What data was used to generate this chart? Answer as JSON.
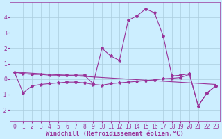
{
  "background_color": "#cceeff",
  "grid_color": "#aaccdd",
  "line_color": "#993399",
  "marker": "*",
  "marker_size": 3,
  "line_width": 0.8,
  "xlim": [
    -0.5,
    23.5
  ],
  "ylim": [
    -2.7,
    5.0
  ],
  "yticks": [
    -2,
    -1,
    0,
    1,
    2,
    3,
    4
  ],
  "xticks": [
    0,
    1,
    2,
    3,
    4,
    5,
    6,
    7,
    8,
    9,
    10,
    11,
    12,
    13,
    14,
    15,
    16,
    17,
    18,
    19,
    20,
    21,
    22,
    23
  ],
  "xlabel": "Windchill (Refroidissement éolien,°C)",
  "xlabel_fontsize": 6.5,
  "tick_fontsize": 5.5,
  "series1_x": [
    0,
    1,
    2,
    3,
    4,
    5,
    6,
    7,
    8,
    9,
    10,
    11,
    12,
    13,
    14,
    15,
    16,
    17,
    18,
    19,
    20,
    21,
    22,
    23
  ],
  "series1_y": [
    0.45,
    0.35,
    0.3,
    0.3,
    0.25,
    0.25,
    0.25,
    0.25,
    0.25,
    -0.3,
    2.0,
    1.5,
    1.2,
    3.8,
    4.1,
    4.55,
    4.3,
    2.8,
    0.2,
    0.25,
    0.35,
    -1.75,
    -0.9,
    -0.45
  ],
  "series2_x": [
    0,
    1,
    2,
    3,
    4,
    5,
    6,
    7,
    8,
    9,
    10,
    11,
    12,
    13,
    14,
    15,
    16,
    17,
    18,
    19,
    20,
    21,
    22,
    23
  ],
  "series2_y": [
    0.45,
    -0.9,
    -0.45,
    -0.35,
    -0.3,
    -0.25,
    -0.2,
    -0.2,
    -0.25,
    -0.35,
    -0.4,
    -0.3,
    -0.25,
    -0.2,
    -0.15,
    -0.1,
    -0.05,
    0.02,
    0.05,
    0.1,
    0.3,
    -1.75,
    -0.9,
    -0.45
  ],
  "series3_x": [
    0,
    23
  ],
  "series3_y": [
    0.45,
    -0.35
  ]
}
